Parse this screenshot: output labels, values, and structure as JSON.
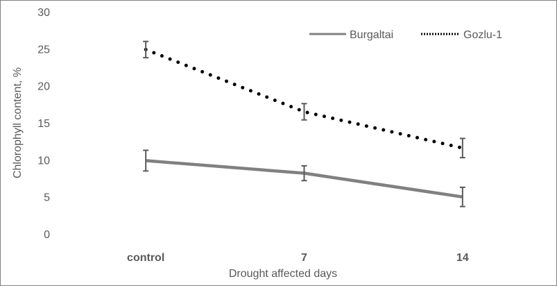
{
  "chart_data": {
    "type": "line",
    "title": "",
    "xlabel": "Drought affected days",
    "ylabel": "Chlorophyll content, %",
    "categories": [
      "control",
      "7",
      "14"
    ],
    "ylim": [
      0,
      30
    ],
    "yticks": [
      "0",
      "5",
      "10",
      "15",
      "20",
      "25",
      "30"
    ],
    "grid": false,
    "legend_position": "top-right",
    "series": [
      {
        "name": "Burgaltai",
        "style": "solid",
        "color": "#808080",
        "values": [
          9.9,
          8.2,
          5.0
        ],
        "error": [
          1.4,
          1.0,
          1.3
        ]
      },
      {
        "name": "Gozlu-1",
        "style": "dotted",
        "color": "#000000",
        "values": [
          24.9,
          16.5,
          11.6
        ],
        "error": [
          1.1,
          1.1,
          1.3
        ]
      }
    ]
  }
}
